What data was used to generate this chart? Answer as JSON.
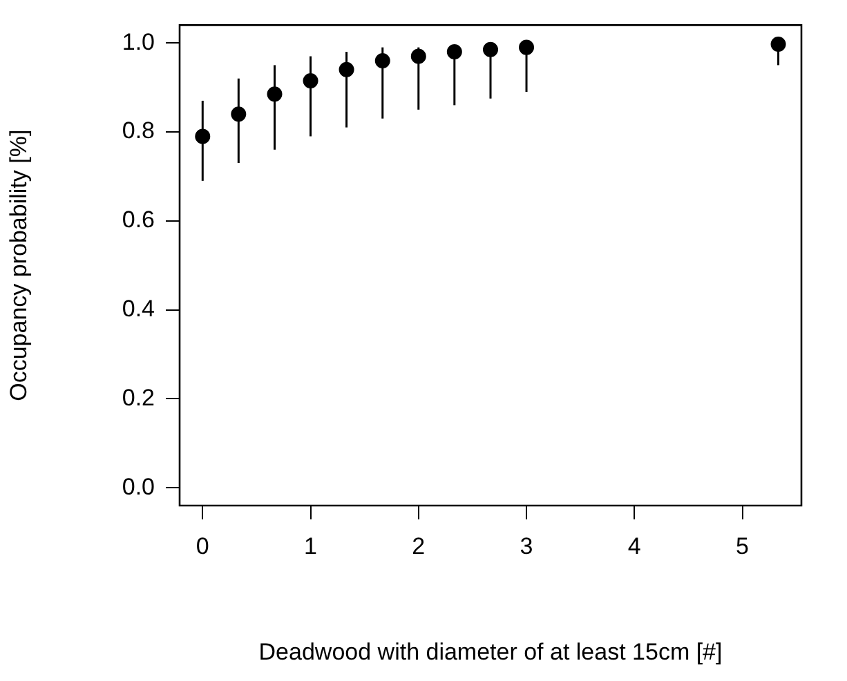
{
  "chart_data": {
    "type": "scatter",
    "xlabel": "Deadwood with diameter of at least 15cm [#]",
    "ylabel": "Occupancy probability [%]",
    "x": [
      0,
      0.333,
      0.667,
      1,
      1.333,
      1.667,
      2,
      2.333,
      2.667,
      3,
      5.333
    ],
    "series": [
      {
        "color": "#000000",
        "values": [
          0.79,
          0.84,
          0.885,
          0.915,
          0.94,
          0.96,
          0.97,
          0.98,
          0.985,
          0.99,
          0.997
        ],
        "errors": [
          [
            0.69,
            0.87
          ],
          [
            0.73,
            0.92
          ],
          [
            0.76,
            0.95
          ],
          [
            0.79,
            0.97
          ],
          [
            0.81,
            0.98
          ],
          [
            0.83,
            0.99
          ],
          [
            0.85,
            0.99
          ],
          [
            0.86,
            0.995
          ],
          [
            0.875,
            0.998
          ],
          [
            0.89,
            0.999
          ],
          [
            0.95,
            1.0
          ]
        ]
      }
    ],
    "xlim": [
      -0.213,
      5.547
    ],
    "ylim": [
      -0.04,
      1.04
    ],
    "xticks": [
      0,
      1,
      2,
      3,
      4,
      5
    ],
    "yticks": [
      {
        "value": 0,
        "label": "0.0"
      },
      {
        "value": 0.2,
        "label": "0.2"
      },
      {
        "value": 0.4,
        "label": "0.4"
      },
      {
        "value": 0.6,
        "label": "0.6"
      },
      {
        "value": 0.8,
        "label": "0.8"
      },
      {
        "value": 1,
        "label": "1.0"
      }
    ],
    "grid": false,
    "legend": false,
    "marker": "circle"
  }
}
